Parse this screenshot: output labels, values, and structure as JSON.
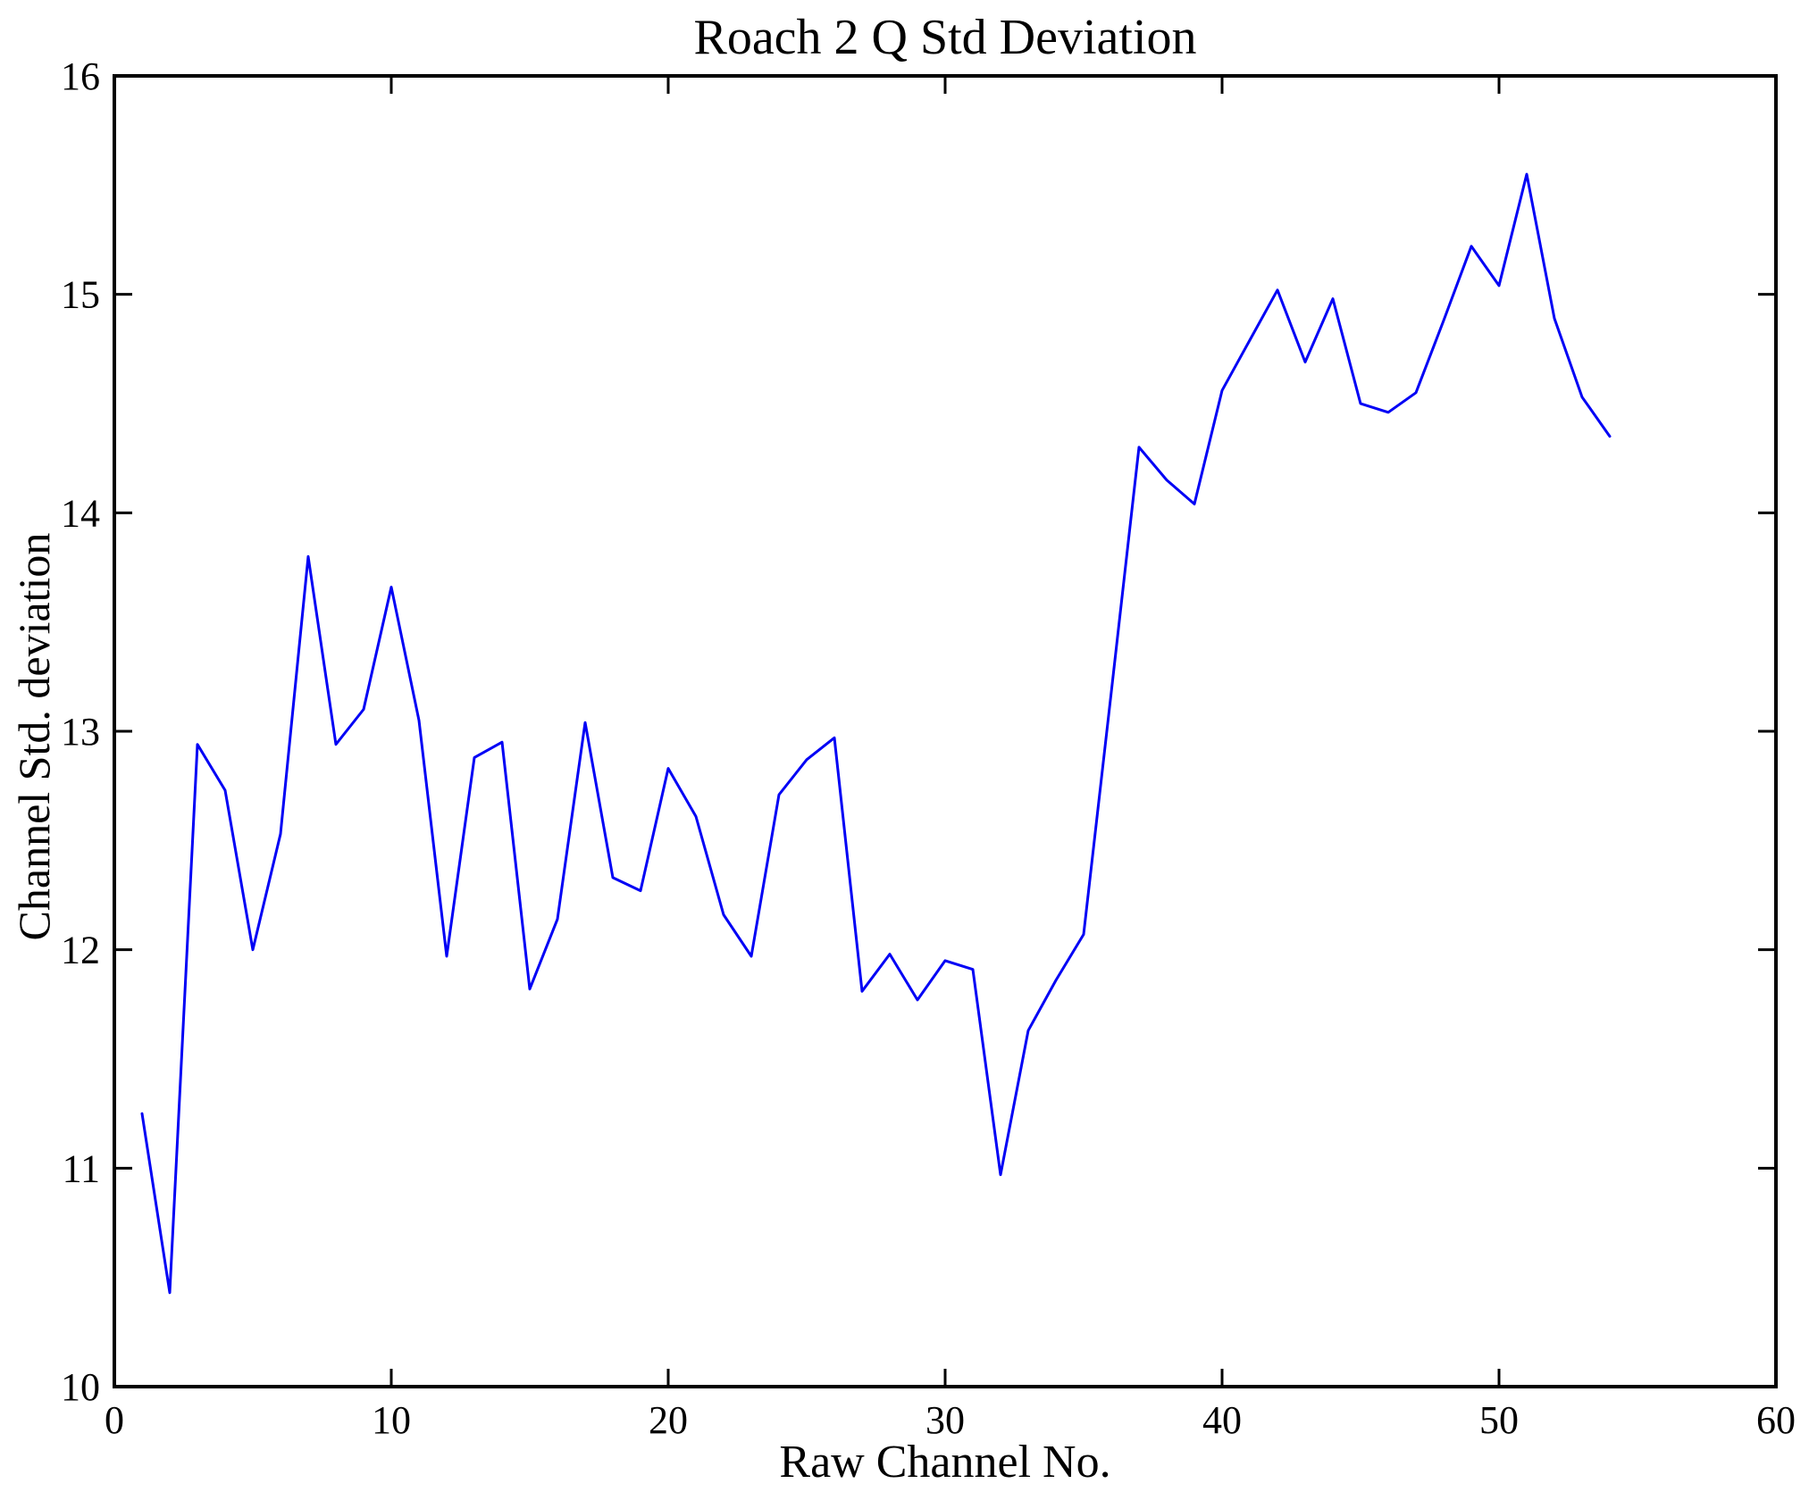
{
  "figure": {
    "background": "#ffffff"
  },
  "chart_data": {
    "type": "line",
    "title": "Roach 2 Q Std Deviation",
    "xlabel": "Raw Channel No.",
    "ylabel": "Channel Std. deviation",
    "xlim": [
      0,
      60
    ],
    "ylim": [
      10,
      16
    ],
    "xticks": [
      0,
      10,
      20,
      30,
      40,
      50,
      60
    ],
    "yticks": [
      10,
      11,
      12,
      13,
      14,
      15,
      16
    ],
    "grid": false,
    "legend": "none",
    "line_color": "#0000f5",
    "axis_color": "#000000",
    "series_name": "channel-std-deviation",
    "x": [
      1,
      2,
      3,
      4,
      5,
      6,
      7,
      8,
      9,
      10,
      11,
      12,
      13,
      14,
      15,
      16,
      17,
      18,
      19,
      20,
      21,
      22,
      23,
      24,
      25,
      26,
      27,
      28,
      29,
      30,
      31,
      32,
      33,
      34,
      35,
      36,
      37,
      38,
      39,
      40,
      41,
      42,
      43,
      44,
      45,
      46,
      47,
      48,
      49,
      50,
      51,
      52,
      53,
      54
    ],
    "values": [
      11.25,
      10.43,
      12.94,
      12.73,
      12.0,
      12.53,
      13.8,
      12.94,
      13.1,
      13.66,
      13.05,
      11.97,
      12.88,
      12.95,
      11.82,
      12.14,
      13.04,
      12.33,
      12.27,
      12.83,
      12.61,
      12.16,
      11.97,
      12.71,
      12.87,
      12.97,
      11.81,
      11.98,
      11.77,
      11.95,
      11.91,
      10.97,
      11.63,
      11.86,
      12.07,
      13.18,
      14.3,
      14.15,
      14.04,
      14.56,
      14.79,
      15.02,
      14.69,
      14.98,
      14.5,
      14.46,
      14.55,
      14.88,
      15.22,
      15.04,
      15.55,
      14.89,
      14.53,
      14.35
    ]
  }
}
